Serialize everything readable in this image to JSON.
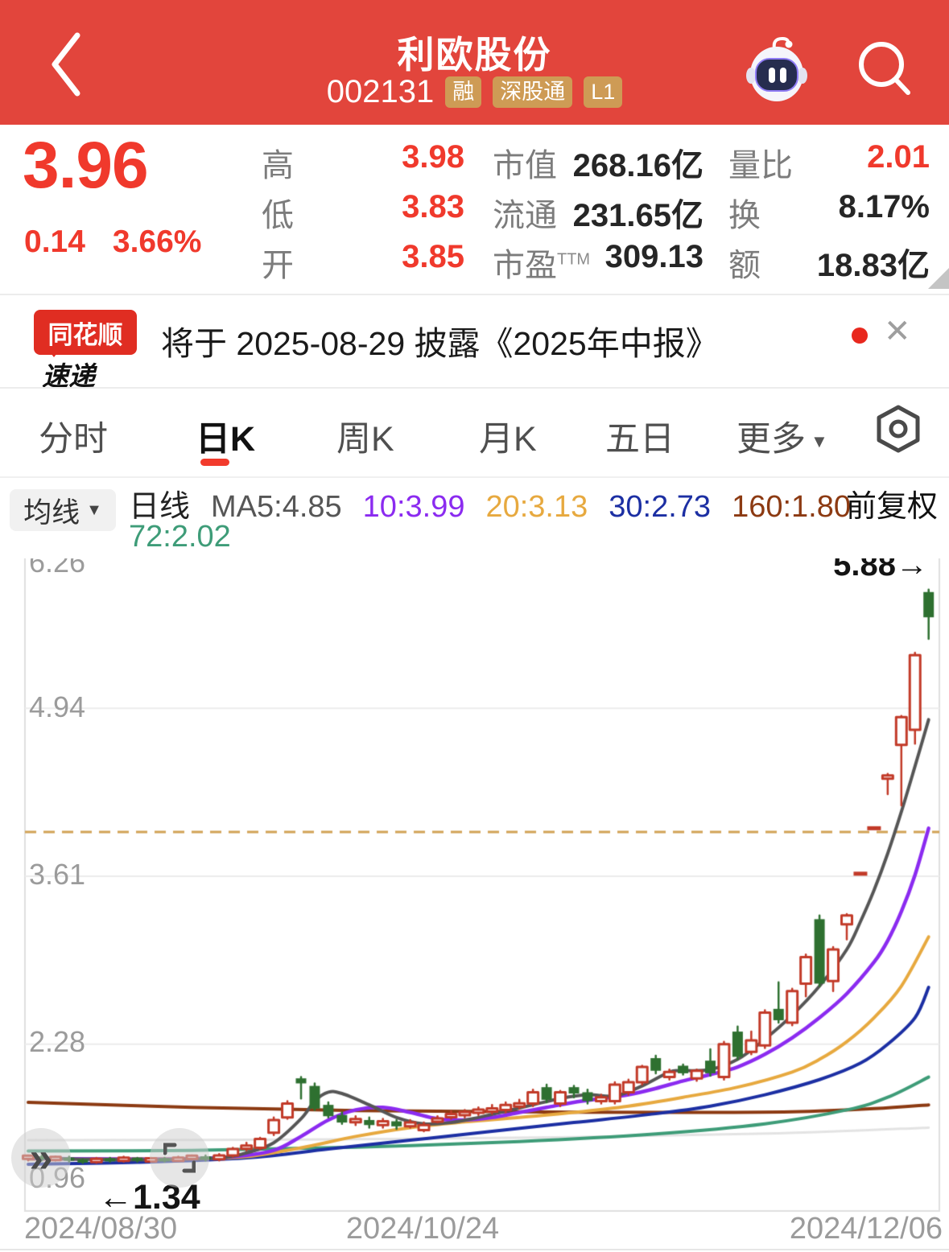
{
  "header": {
    "title": "利欧股份",
    "code": "002131",
    "badges": [
      "融",
      "深股通",
      "L1"
    ]
  },
  "quote": {
    "price": "3.96",
    "change": "0.14",
    "change_pct": "3.66%",
    "stats_left": [
      {
        "label": "高",
        "value": "3.98"
      },
      {
        "label": "低",
        "value": "3.83"
      },
      {
        "label": "开",
        "value": "3.85"
      }
    ],
    "stats_mid": [
      {
        "label": "市值",
        "value": "268.16亿"
      },
      {
        "label": "流通",
        "value": "231.65亿"
      },
      {
        "label": "市盈",
        "sup": "TTM",
        "value": "309.13"
      }
    ],
    "stats_right": [
      {
        "label": "量比",
        "value": "2.01"
      },
      {
        "label": "换",
        "value": "8.17%"
      },
      {
        "label": "额",
        "value": "18.83亿"
      }
    ]
  },
  "news": {
    "logo_line1": "同花顺",
    "logo_line2": "速递",
    "message": "将于 2025-08-29 披露《2025年中报》",
    "close_glyph": "✕"
  },
  "tabs": {
    "items": [
      "分时",
      "日K",
      "周K",
      "月K",
      "五日",
      "更多"
    ],
    "active": "日K",
    "more_caret": "▼"
  },
  "ma_bar": {
    "selector_label": "均线",
    "caret": "▼",
    "period": "日线",
    "items": [
      {
        "label": "MA5:4.85",
        "color": "#565656"
      },
      {
        "label": "10:3.99",
        "color": "#8B2BF0"
      },
      {
        "label": "20:3.13",
        "color": "#E7A93F"
      },
      {
        "label": "30:2.73",
        "color": "#1C2FA3"
      },
      {
        "label": "160:1.80",
        "color": "#8C3A12"
      }
    ],
    "item_row2": {
      "label": "72:2.02",
      "color": "#3E9C78"
    },
    "adjust_label": "前复权"
  },
  "floating": {
    "fast_forward_glyph": "»"
  },
  "chart_data": {
    "type": "candlestick",
    "period": "daily",
    "ylim": [
      0.96,
      6.26
    ],
    "y_ticks": [
      "6.26",
      "4.94",
      "3.61",
      "2.28",
      "0.96"
    ],
    "y_tick_values": [
      6.26,
      4.94,
      3.61,
      2.28,
      0.96
    ],
    "x_labels": [
      "2024/08/30",
      "2024/10/24",
      "2024/12/06"
    ],
    "annotations": {
      "high": "5.88→",
      "high_value": 5.88,
      "low": "←1.34",
      "low_value": 1.34
    },
    "last_price_line": 3.96,
    "colors": {
      "up": "#C23A28",
      "down": "#2E7030",
      "grid": "#ECECEC",
      "border": "#DFDFDF",
      "last_price": "#D2A255",
      "ma5": "#565656",
      "ma10": "#8B2BF0",
      "ma20": "#E7A93F",
      "ma30": "#1C2FA3",
      "ma72": "#3E9C78",
      "ma160": "#8C3A12",
      "ma_faint": "#E3E3E3"
    },
    "ohlc": [
      [
        1.38,
        1.4,
        1.36,
        1.39
      ],
      [
        1.39,
        1.4,
        1.36,
        1.37
      ],
      [
        1.37,
        1.39,
        1.36,
        1.38
      ],
      [
        1.38,
        1.39,
        1.35,
        1.36
      ],
      [
        1.36,
        1.37,
        1.34,
        1.35
      ],
      [
        1.35,
        1.38,
        1.34,
        1.37
      ],
      [
        1.37,
        1.38,
        1.35,
        1.36
      ],
      [
        1.36,
        1.39,
        1.35,
        1.38
      ],
      [
        1.38,
        1.38,
        1.35,
        1.36
      ],
      [
        1.36,
        1.38,
        1.35,
        1.37
      ],
      [
        1.37,
        1.38,
        1.35,
        1.36
      ],
      [
        1.36,
        1.39,
        1.36,
        1.38
      ],
      [
        1.38,
        1.4,
        1.37,
        1.39
      ],
      [
        1.39,
        1.4,
        1.36,
        1.37
      ],
      [
        1.37,
        1.41,
        1.36,
        1.4
      ],
      [
        1.4,
        1.46,
        1.39,
        1.45
      ],
      [
        1.46,
        1.5,
        1.44,
        1.47
      ],
      [
        1.46,
        1.54,
        1.45,
        1.53
      ],
      [
        1.58,
        1.7,
        1.56,
        1.68
      ],
      [
        1.7,
        1.83,
        1.69,
        1.81
      ],
      [
        2.01,
        2.02,
        1.85,
        1.97
      ],
      [
        1.95,
        1.97,
        1.76,
        1.77
      ],
      [
        1.8,
        1.82,
        1.7,
        1.71
      ],
      [
        1.72,
        1.74,
        1.65,
        1.66
      ],
      [
        1.67,
        1.71,
        1.64,
        1.68
      ],
      [
        1.68,
        1.7,
        1.62,
        1.64
      ],
      [
        1.64,
        1.69,
        1.62,
        1.67
      ],
      [
        1.67,
        1.68,
        1.61,
        1.63
      ],
      [
        1.63,
        1.68,
        1.62,
        1.66
      ],
      [
        1.6,
        1.66,
        1.59,
        1.64
      ],
      [
        1.67,
        1.71,
        1.66,
        1.69
      ],
      [
        1.71,
        1.75,
        1.69,
        1.72
      ],
      [
        1.72,
        1.76,
        1.7,
        1.74
      ],
      [
        1.74,
        1.78,
        1.72,
        1.76
      ],
      [
        1.75,
        1.8,
        1.73,
        1.77
      ],
      [
        1.76,
        1.82,
        1.74,
        1.8
      ],
      [
        1.79,
        1.84,
        1.77,
        1.81
      ],
      [
        1.81,
        1.92,
        1.79,
        1.9
      ],
      [
        1.94,
        1.96,
        1.82,
        1.84
      ],
      [
        1.81,
        1.91,
        1.79,
        1.9
      ],
      [
        1.94,
        1.95,
        1.86,
        1.89
      ],
      [
        1.9,
        1.92,
        1.81,
        1.83
      ],
      [
        1.83,
        1.88,
        1.81,
        1.86
      ],
      [
        1.83,
        1.98,
        1.81,
        1.96
      ],
      [
        1.9,
        2.0,
        1.88,
        1.98
      ],
      [
        1.98,
        2.11,
        1.96,
        2.1
      ],
      [
        2.17,
        2.19,
        2.05,
        2.07
      ],
      [
        2.02,
        2.08,
        2.0,
        2.06
      ],
      [
        2.11,
        2.12,
        2.04,
        2.05
      ],
      [
        2.01,
        2.08,
        1.99,
        2.07
      ],
      [
        2.15,
        2.24,
        2.03,
        2.05
      ],
      [
        2.02,
        2.3,
        2.0,
        2.28
      ],
      [
        2.38,
        2.42,
        2.16,
        2.18
      ],
      [
        2.22,
        2.38,
        2.2,
        2.31
      ],
      [
        2.27,
        2.55,
        2.25,
        2.53
      ],
      [
        2.56,
        2.77,
        2.45,
        2.47
      ],
      [
        2.45,
        2.72,
        2.43,
        2.7
      ],
      [
        2.76,
        2.99,
        2.66,
        2.97
      ],
      [
        3.27,
        3.3,
        2.74,
        2.76
      ],
      [
        2.78,
        3.05,
        2.7,
        3.03
      ],
      [
        3.23,
        3.31,
        3.11,
        3.3
      ],
      [
        3.63,
        3.63,
        3.63,
        3.63
      ],
      [
        3.99,
        3.99,
        3.99,
        3.99
      ],
      [
        4.39,
        4.42,
        4.26,
        4.4
      ],
      [
        4.65,
        4.88,
        4.17,
        4.87
      ],
      [
        4.77,
        5.38,
        4.66,
        5.36
      ],
      [
        5.86,
        5.88,
        5.49,
        5.66
      ]
    ],
    "ma_series": [
      {
        "name": "ma_faint",
        "width": 3,
        "points": [
          [
            0,
            1.52
          ],
          [
            20,
            1.525
          ],
          [
            40,
            1.545
          ],
          [
            55,
            1.575
          ],
          [
            66,
            1.62
          ]
        ]
      },
      {
        "name": "ma160",
        "width": 4,
        "points": [
          [
            0,
            1.82
          ],
          [
            12,
            1.78
          ],
          [
            24,
            1.755
          ],
          [
            36,
            1.745
          ],
          [
            48,
            1.74
          ],
          [
            56,
            1.745
          ],
          [
            62,
            1.77
          ],
          [
            66,
            1.8
          ]
        ]
      },
      {
        "name": "ma72",
        "width": 4,
        "points": [
          [
            0,
            1.435
          ],
          [
            12,
            1.44
          ],
          [
            24,
            1.465
          ],
          [
            36,
            1.51
          ],
          [
            46,
            1.57
          ],
          [
            54,
            1.65
          ],
          [
            60,
            1.76
          ],
          [
            63,
            1.86
          ],
          [
            66,
            2.02
          ]
        ]
      },
      {
        "name": "ma30",
        "width": 4,
        "points": [
          [
            0,
            1.33
          ],
          [
            8,
            1.345
          ],
          [
            16,
            1.38
          ],
          [
            22,
            1.45
          ],
          [
            28,
            1.52
          ],
          [
            34,
            1.59
          ],
          [
            40,
            1.66
          ],
          [
            46,
            1.73
          ],
          [
            50,
            1.79
          ],
          [
            54,
            1.88
          ],
          [
            58,
            2.0
          ],
          [
            61,
            2.13
          ],
          [
            63,
            2.28
          ],
          [
            65,
            2.49
          ],
          [
            66,
            2.73
          ]
        ]
      },
      {
        "name": "ma20",
        "width": 4,
        "points": [
          [
            0,
            1.37
          ],
          [
            12,
            1.375
          ],
          [
            16,
            1.39
          ],
          [
            20,
            1.46
          ],
          [
            24,
            1.55
          ],
          [
            28,
            1.62
          ],
          [
            32,
            1.665
          ],
          [
            36,
            1.7
          ],
          [
            40,
            1.74
          ],
          [
            44,
            1.79
          ],
          [
            48,
            1.86
          ],
          [
            52,
            1.94
          ],
          [
            56,
            2.06
          ],
          [
            58,
            2.16
          ],
          [
            60,
            2.3
          ],
          [
            62,
            2.49
          ],
          [
            64,
            2.74
          ],
          [
            66,
            3.13
          ]
        ]
      },
      {
        "name": "ma10",
        "width": 4.5,
        "points": [
          [
            0,
            1.375
          ],
          [
            10,
            1.37
          ],
          [
            15,
            1.39
          ],
          [
            18,
            1.44
          ],
          [
            20,
            1.55
          ],
          [
            22,
            1.68
          ],
          [
            24,
            1.76
          ],
          [
            26,
            1.78
          ],
          [
            28,
            1.74
          ],
          [
            30,
            1.69
          ],
          [
            32,
            1.68
          ],
          [
            34,
            1.7
          ],
          [
            36,
            1.74
          ],
          [
            38,
            1.78
          ],
          [
            40,
            1.82
          ],
          [
            42,
            1.85
          ],
          [
            44,
            1.88
          ],
          [
            46,
            1.93
          ],
          [
            48,
            1.99
          ],
          [
            50,
            2.04
          ],
          [
            52,
            2.1
          ],
          [
            54,
            2.2
          ],
          [
            56,
            2.33
          ],
          [
            58,
            2.49
          ],
          [
            60,
            2.68
          ],
          [
            62,
            2.93
          ],
          [
            63,
            3.1
          ],
          [
            64,
            3.33
          ],
          [
            65,
            3.62
          ],
          [
            66,
            3.99
          ]
        ]
      },
      {
        "name": "ma5",
        "width": 4,
        "points": [
          [
            0,
            1.38
          ],
          [
            4,
            1.37
          ],
          [
            9,
            1.365
          ],
          [
            14,
            1.38
          ],
          [
            16,
            1.42
          ],
          [
            18,
            1.5
          ],
          [
            20,
            1.69
          ],
          [
            21,
            1.83
          ],
          [
            22,
            1.9
          ],
          [
            23,
            1.89
          ],
          [
            25,
            1.8
          ],
          [
            27,
            1.7
          ],
          [
            29,
            1.65
          ],
          [
            31,
            1.66
          ],
          [
            33,
            1.7
          ],
          [
            35,
            1.75
          ],
          [
            37,
            1.8
          ],
          [
            39,
            1.85
          ],
          [
            41,
            1.88
          ],
          [
            43,
            1.87
          ],
          [
            45,
            1.95
          ],
          [
            47,
            2.06
          ],
          [
            48,
            2.07
          ],
          [
            50,
            2.08
          ],
          [
            52,
            2.16
          ],
          [
            54,
            2.32
          ],
          [
            56,
            2.51
          ],
          [
            58,
            2.74
          ],
          [
            60,
            3.03
          ],
          [
            61,
            3.25
          ],
          [
            62,
            3.5
          ],
          [
            63,
            3.79
          ],
          [
            64,
            4.12
          ],
          [
            65,
            4.48
          ],
          [
            66,
            4.85
          ]
        ]
      }
    ]
  }
}
